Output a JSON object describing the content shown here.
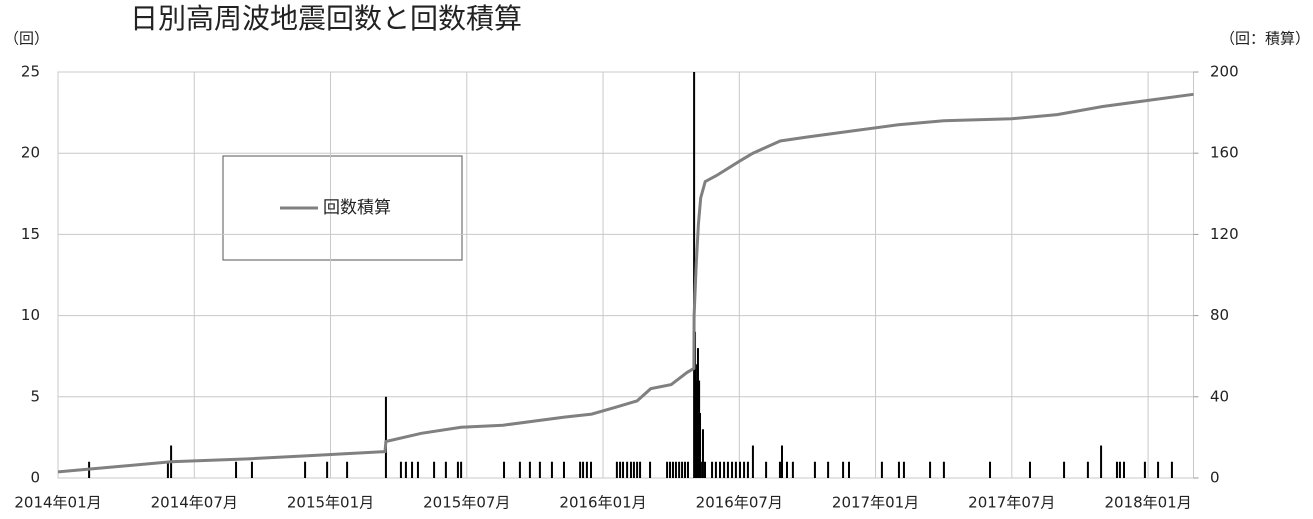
{
  "chart_data": {
    "type": "combo",
    "title": "日別高周波地震回数と回数積算",
    "y_label": "（回）",
    "y2_label": "（回：積算）",
    "xlim": [
      0,
      50
    ],
    "xticks": [
      {
        "value": 0,
        "label": "2014年01月"
      },
      {
        "value": 6,
        "label": "2014年07月"
      },
      {
        "value": 12,
        "label": "2015年01月"
      },
      {
        "value": 18,
        "label": "2015年07月"
      },
      {
        "value": 24,
        "label": "2016年01月"
      },
      {
        "value": 30,
        "label": "2016年07月"
      },
      {
        "value": 36,
        "label": "2017年01月"
      },
      {
        "value": 42,
        "label": "2017年07月"
      },
      {
        "value": 48,
        "label": "2018年01月"
      }
    ],
    "ylim": [
      0,
      25
    ],
    "yticks": [
      0,
      5,
      10,
      15,
      20,
      25
    ],
    "y2lim": [
      0,
      200
    ],
    "y2ticks": [
      0,
      40,
      80,
      120,
      160,
      200
    ],
    "grid": true,
    "legend": "upper left",
    "series": [
      {
        "type": "bar",
        "color": "#000000",
        "x": [
          1.37,
          4.84,
          4.98,
          7.84,
          8.54,
          10.88,
          11.85,
          12.73,
          14.44,
          15.1,
          15.32,
          15.59,
          15.85,
          16.56,
          17.08,
          17.61,
          17.75,
          19.64,
          20.34,
          20.78,
          21.22,
          21.75,
          22.28,
          22.99,
          23.12,
          23.29,
          23.47,
          24.61,
          24.75,
          24.88,
          25.06,
          25.23,
          25.36,
          25.5,
          25.63,
          26.07,
          26.82,
          26.95,
          27.08,
          27.21,
          27.35,
          27.48,
          27.61,
          27.74,
          28.01,
          28.05,
          28.09,
          28.14,
          28.18,
          28.23,
          28.27,
          28.36,
          28.4,
          28.49,
          28.8,
          28.97,
          29.15,
          29.33,
          29.5,
          29.68,
          29.85,
          30.03,
          30.21,
          30.38,
          30.6,
          31.18,
          31.79,
          31.88,
          32.1,
          32.36,
          33.33,
          33.91,
          34.57,
          34.83,
          36.28,
          37.03,
          37.25,
          38.4,
          39.01,
          41.04,
          42.8,
          44.3,
          45.35,
          45.93,
          46.63,
          46.76,
          46.94,
          47.86,
          48.44,
          49.05
        ],
        "values": [
          1,
          1,
          2,
          1,
          1,
          1,
          1,
          1,
          5,
          1,
          1,
          1,
          1,
          1,
          1,
          1,
          1,
          1,
          1,
          1,
          1,
          1,
          1,
          1,
          1,
          1,
          1,
          1,
          1,
          1,
          1,
          1,
          1,
          1,
          1,
          1,
          1,
          1,
          1,
          1,
          1,
          1,
          1,
          1,
          25,
          9,
          7,
          6,
          8,
          6,
          4,
          1,
          3,
          1,
          1,
          1,
          1,
          1,
          1,
          1,
          1,
          1,
          1,
          1,
          2,
          1,
          1,
          2,
          1,
          1,
          1,
          1,
          1,
          1,
          1,
          1,
          1,
          1,
          1,
          1,
          1,
          1,
          1,
          2,
          1,
          1,
          1,
          1,
          1,
          1
        ]
      },
      {
        "type": "line",
        "name": "回数積算",
        "color": "#808080",
        "axis": "y2",
        "x": [
          0,
          4.98,
          8.5,
          11,
          14.4,
          14.44,
          16,
          17.75,
          19.6,
          22.3,
          23.5,
          24.6,
          25.5,
          26.1,
          27,
          27.7,
          28.0,
          28.01,
          28.1,
          28.2,
          28.3,
          28.5,
          29,
          30,
          30.6,
          31.8,
          33,
          35,
          37,
          39,
          42,
          44,
          46,
          48,
          50
        ],
        "values": [
          3,
          8,
          9.5,
          11,
          13,
          18,
          22,
          25,
          26,
          30,
          31.5,
          35,
          38,
          44,
          46,
          52,
          54,
          80,
          105,
          125,
          138,
          146,
          149,
          156,
          160,
          166,
          168,
          171,
          174,
          176,
          177,
          179,
          183,
          186,
          189
        ]
      }
    ]
  }
}
